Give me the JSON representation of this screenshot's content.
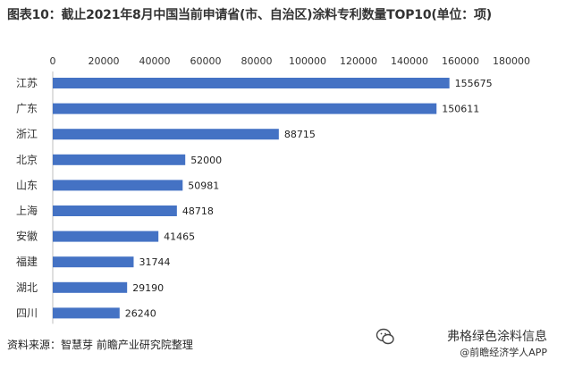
{
  "title": "图表10：截止2021年8月中国当前申请省(市、自治区)涂料专利数量TOP10(单位：项)",
  "source": "资料来源：智慧芽 前瞻产业研究院整理",
  "brand_main": "弗格绿色涂料信息",
  "brand_sub": "@前瞻经济学人APP",
  "chart_data": {
    "type": "bar",
    "orientation": "horizontal",
    "title": "图表10：截止2021年8月中国当前申请省(市、自治区)涂料专利数量TOP10(单位：项)",
    "categories": [
      "江苏",
      "广东",
      "浙江",
      "北京",
      "山东",
      "上海",
      "安徽",
      "福建",
      "湖北",
      "四川"
    ],
    "values": [
      155675,
      150611,
      88715,
      52000,
      50981,
      48718,
      41465,
      31744,
      29190,
      26240
    ],
    "xlim": [
      0,
      180000
    ],
    "xticks": [
      0,
      20000,
      40000,
      60000,
      80000,
      100000,
      120000,
      140000,
      160000,
      180000
    ],
    "axis_position": "top",
    "bar_color": "#4472c4",
    "grid": false,
    "data_labels": true
  }
}
